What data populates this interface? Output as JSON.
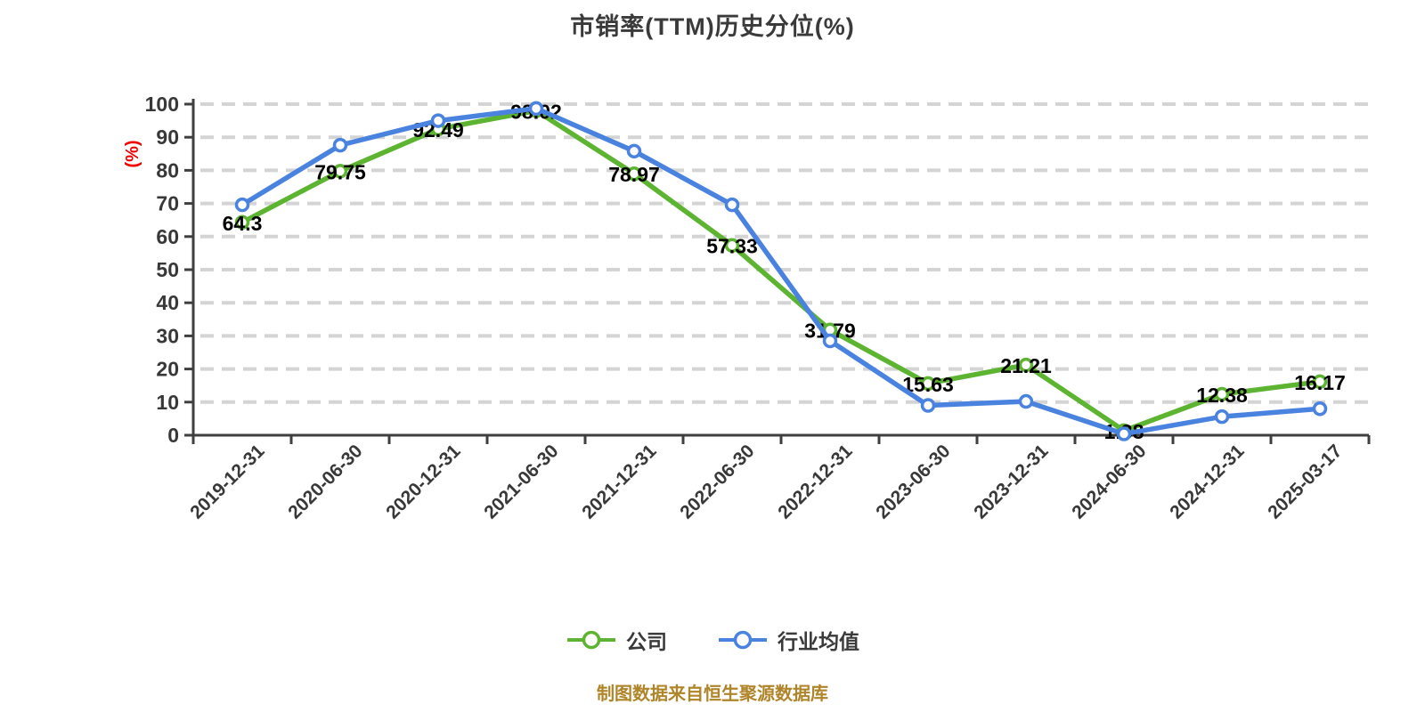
{
  "title": "市销率(TTM)历史分位(%)",
  "caption": "制图数据来自恒生聚源数据库",
  "colors": {
    "company_series": "#5CB431",
    "industry_series": "#4A82DF",
    "unit_label": "#F20000",
    "caption_text": "#B08428",
    "axis": "#3F3F3F",
    "gridline": "#D4D4D4",
    "tick_text": "#383838",
    "value_label": "#000000"
  },
  "chart_data": {
    "type": "line",
    "title": "市销率(TTM)历史分位(%)",
    "ylabel": "(%)",
    "xlabel": "",
    "ylim": [
      0,
      100
    ],
    "y_tick_step": 10,
    "grid": "horizontal-dashed",
    "legend_position": "bottom",
    "categories": [
      "2019-12-31",
      "2020-06-30",
      "2020-12-31",
      "2021-06-30",
      "2021-12-31",
      "2022-06-30",
      "2022-12-31",
      "2023-06-30",
      "2023-12-31",
      "2024-06-30",
      "2024-12-31",
      "2025-03-17"
    ],
    "series": [
      {
        "name": "公司",
        "color": "#5CB431",
        "labeled": true,
        "values": [
          64.3,
          79.75,
          92.49,
          98.02,
          78.97,
          57.33,
          31.79,
          15.63,
          21.21,
          1.38,
          12.38,
          16.17
        ]
      },
      {
        "name": "行业均值",
        "color": "#4A82DF",
        "labeled": false,
        "values": [
          69.6,
          87.6,
          95.0,
          98.7,
          85.8,
          69.6,
          28.5,
          9.0,
          10.2,
          0.4,
          5.6,
          8.0
        ]
      }
    ]
  }
}
